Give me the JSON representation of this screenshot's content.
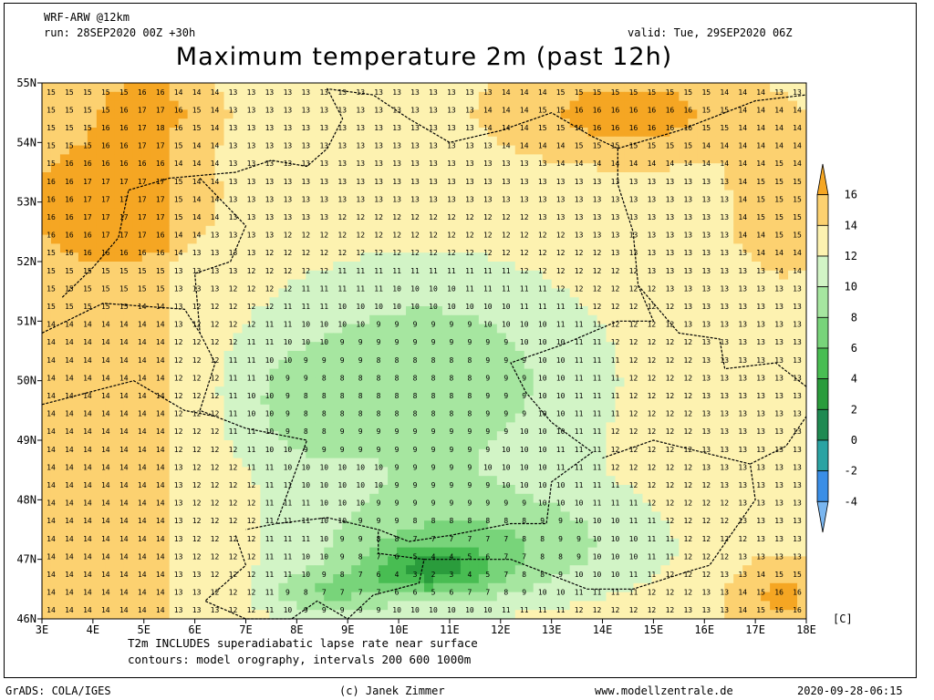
{
  "header": {
    "model": "WRF-ARW @12km",
    "run": "run: 28SEP2020 00Z +30h",
    "valid": "valid: Tue, 29SEP2020 06Z"
  },
  "title": "Maximum temperature 2m (past 12h)",
  "notes": {
    "line1": "T2m INCLUDES superadiabatic lapse rate near surface",
    "line2": "contours: model orography, intervals 200 600 1000m"
  },
  "footer": {
    "software": "GrADS: COLA/IGES",
    "credit": "(c) Janek Zimmer",
    "website": "www.modellzentrale.de",
    "timestamp": "2020-09-28-06:15"
  },
  "map": {
    "lon_labels": [
      "3E",
      "4E",
      "5E",
      "6E",
      "7E",
      "8E",
      "9E",
      "10E",
      "11E",
      "12E",
      "13E",
      "14E",
      "15E",
      "16E",
      "17E",
      "18E"
    ],
    "lat_labels": [
      "55N",
      "54N",
      "53N",
      "52N",
      "51N",
      "50N",
      "49N",
      "48N",
      "47N",
      "46N"
    ],
    "lon_range": [
      3,
      18
    ],
    "lat_range": [
      46,
      55
    ]
  },
  "colorbar": {
    "unit": "[C]",
    "tick_labels": [
      "16",
      "14",
      "12",
      "10",
      "8",
      "6",
      "4",
      "2",
      "0",
      "-2",
      "-4"
    ],
    "bins": [
      {
        "min": 16,
        "color": "#f5a623"
      },
      {
        "min": 14,
        "color": "#fcd170"
      },
      {
        "min": 12,
        "color": "#fdf2b0"
      },
      {
        "min": 10,
        "color": "#d2f4c6"
      },
      {
        "min": 8,
        "color": "#a6e6a0"
      },
      {
        "min": 6,
        "color": "#78d47a"
      },
      {
        "min": 4,
        "color": "#48bd52"
      },
      {
        "min": 2,
        "color": "#2a9c3c"
      },
      {
        "min": 0,
        "color": "#1f8a52"
      },
      {
        "min": -2,
        "color": "#2aa3a3"
      },
      {
        "min": -4,
        "color": "#3a8ee6"
      },
      {
        "min": -99,
        "color": "#7ab6f0"
      }
    ]
  }
}
